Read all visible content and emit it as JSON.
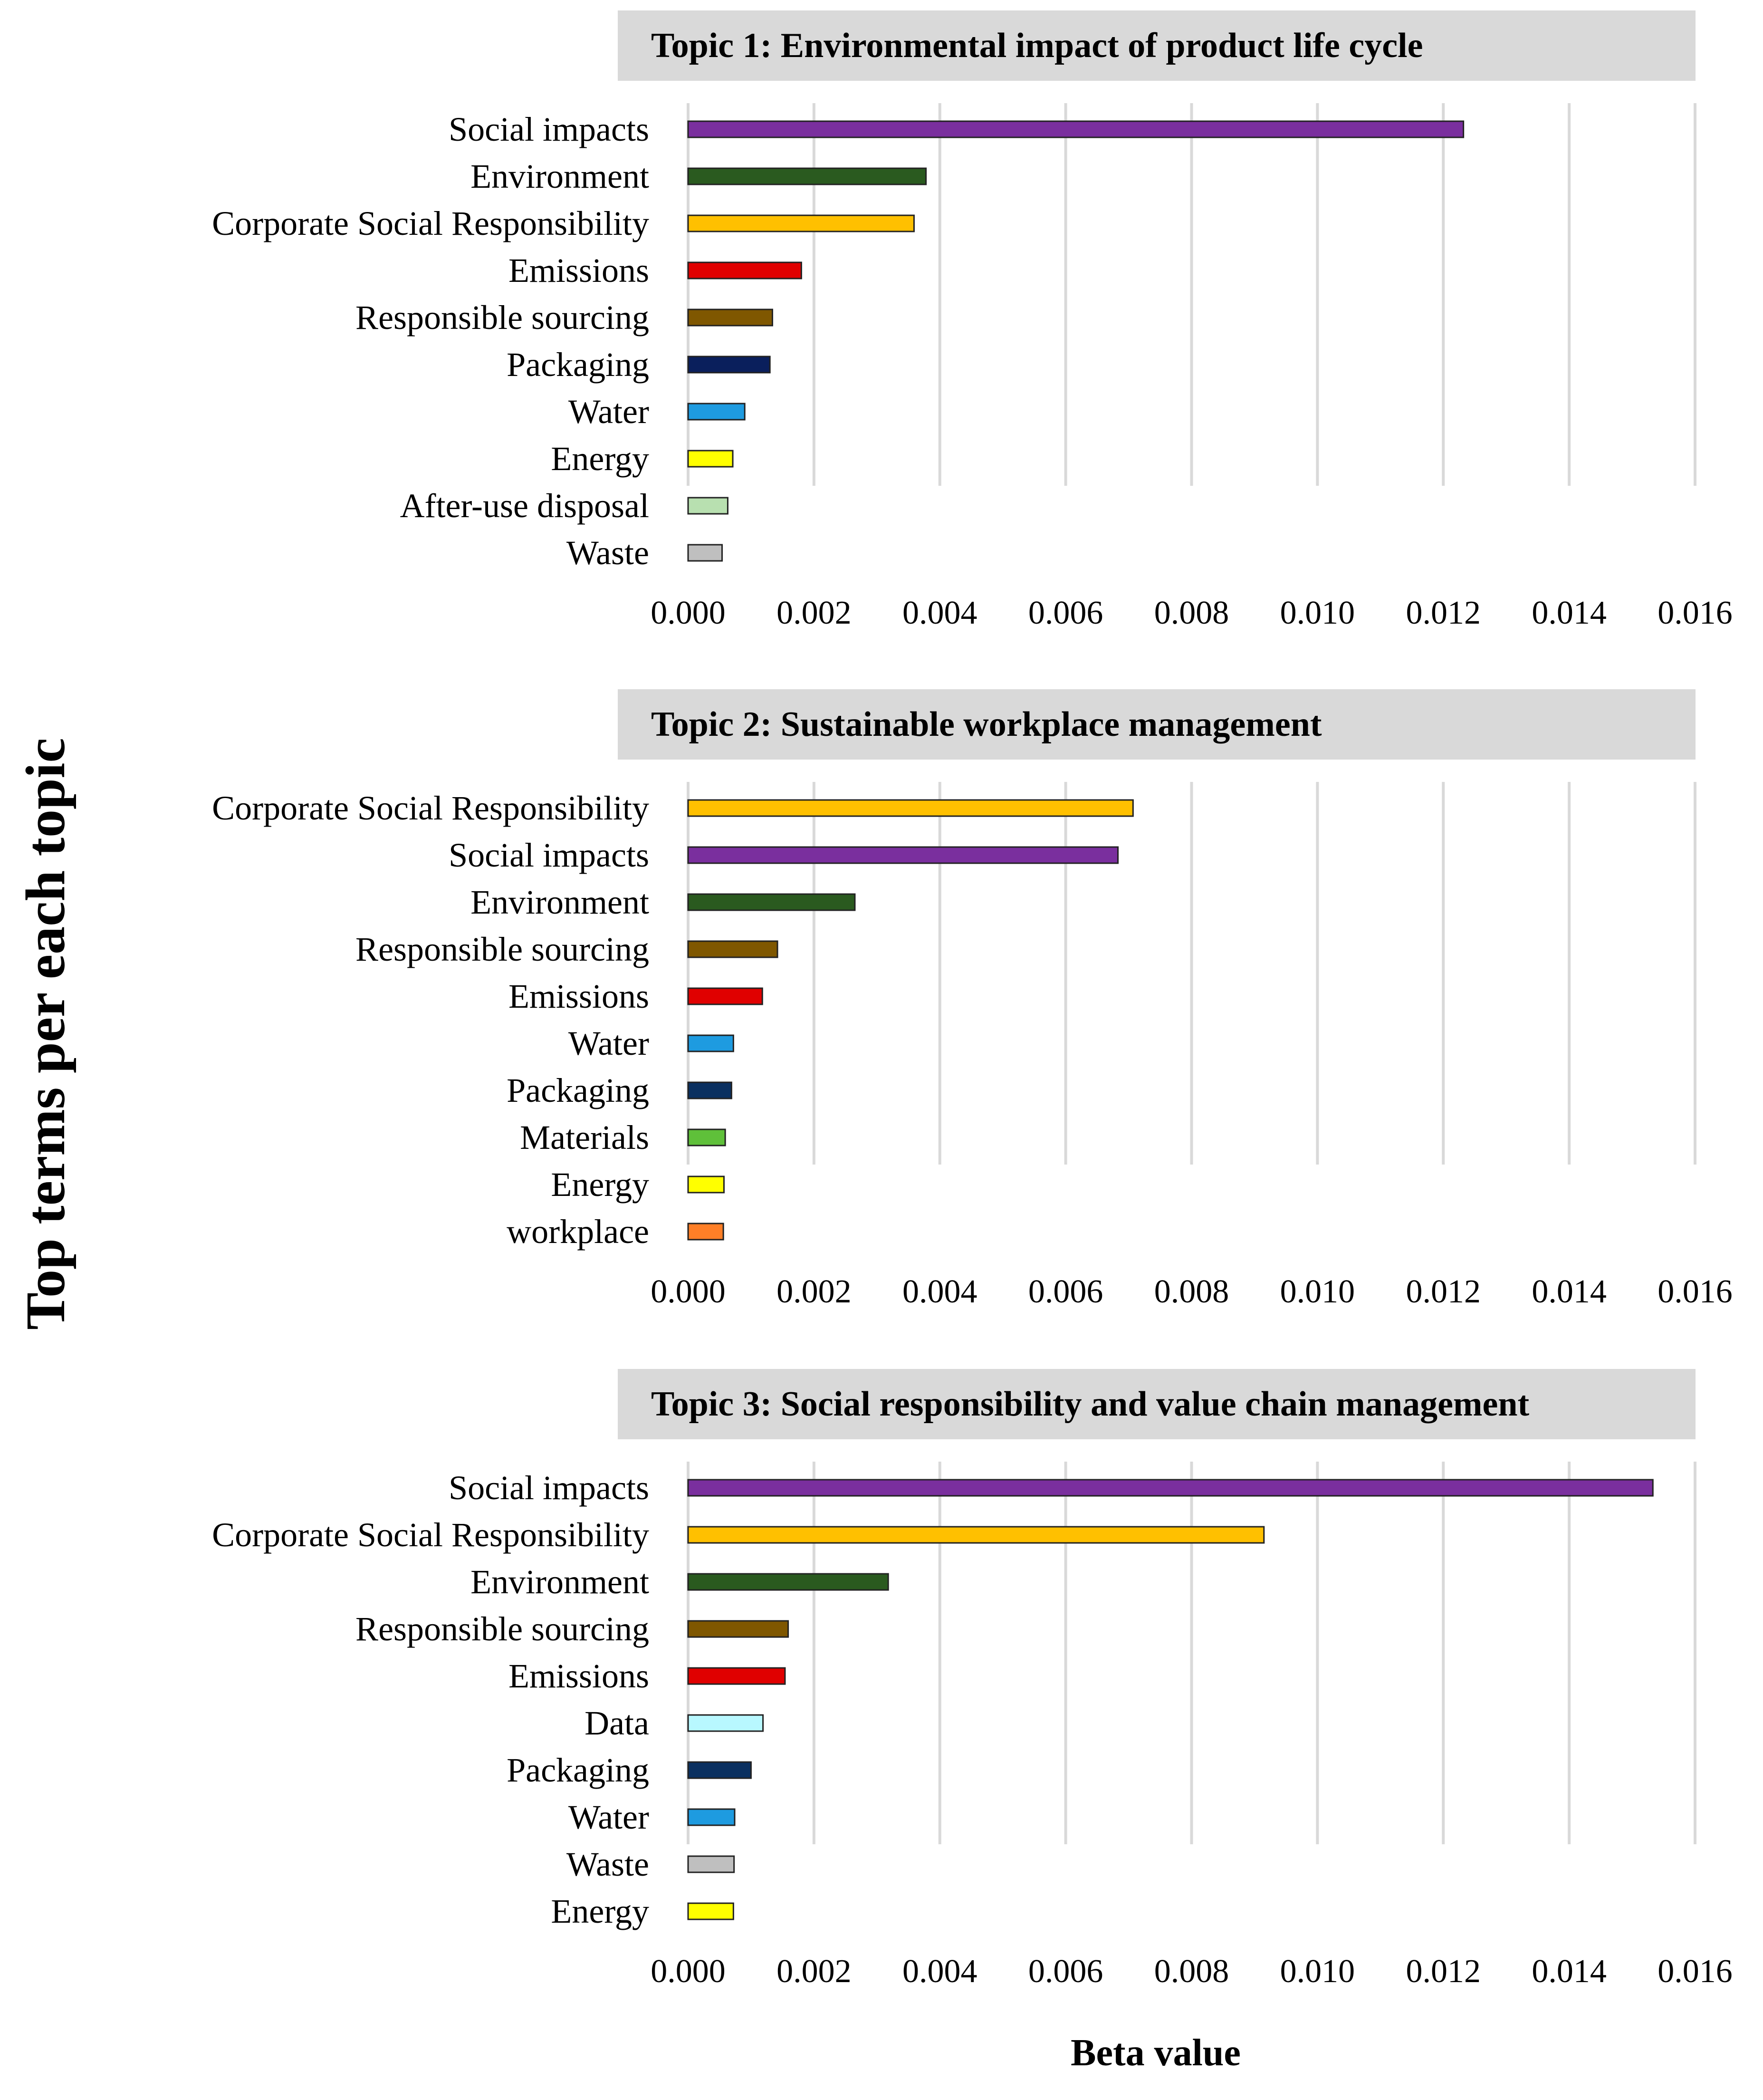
{
  "y_axis_title": "Top terms per each topic",
  "x_axis_title": "Beta value",
  "chart_data": [
    {
      "type": "bar",
      "orientation": "horizontal",
      "title": "Topic 1: Environmental impact of product life cycle",
      "xlabel": "Beta value",
      "ylabel": "Top terms per each topic",
      "xlim": [
        0,
        0.016
      ],
      "xticks": [
        "0.000",
        "0.002",
        "0.004",
        "0.006",
        "0.008",
        "0.010",
        "0.012",
        "0.014",
        "0.016"
      ],
      "grid": true,
      "categories": [
        "Social impacts",
        "Environment",
        "Corporate Social Responsibility",
        "Emissions",
        "Responsible sourcing",
        "Packaging",
        "Water",
        "Energy",
        "After-use disposal",
        "Waste"
      ],
      "values": [
        0.01232,
        0.00378,
        0.00359,
        0.0018,
        0.00134,
        0.0013,
        0.0009,
        0.00071,
        0.00063,
        0.00054
      ],
      "colors": [
        "#7a2f9e",
        "#2a5a1f",
        "#ffc000",
        "#e00000",
        "#7f5700",
        "#0a1f5c",
        "#1e9be0",
        "#ffff00",
        "#b8e0b0",
        "#bfbfbf"
      ]
    },
    {
      "type": "bar",
      "orientation": "horizontal",
      "title": "Topic 2: Sustainable workplace management",
      "xlabel": "Beta value",
      "ylabel": "Top terms per each topic",
      "xlim": [
        0,
        0.016
      ],
      "xticks": [
        "0.000",
        "0.002",
        "0.004",
        "0.006",
        "0.008",
        "0.010",
        "0.012",
        "0.014",
        "0.016"
      ],
      "grid": true,
      "categories": [
        "Corporate Social Responsibility",
        "Social impacts",
        "Environment",
        "Responsible sourcing",
        "Emissions",
        "Water",
        "Packaging",
        "Materials",
        "Energy",
        "workplace"
      ],
      "values": [
        0.00707,
        0.00683,
        0.00265,
        0.00142,
        0.00118,
        0.00072,
        0.00069,
        0.00059,
        0.00057,
        0.00056
      ],
      "colors": [
        "#ffc000",
        "#7a2f9e",
        "#2a5a1f",
        "#7f5700",
        "#e00000",
        "#1e9be0",
        "#0a3060",
        "#5fc03a",
        "#ffff00",
        "#ff7f27"
      ]
    },
    {
      "type": "bar",
      "orientation": "horizontal",
      "title": "Topic 3: Social responsibility and value chain management",
      "xlabel": "Beta value",
      "ylabel": "Top terms per each topic",
      "xlim": [
        0,
        0.016
      ],
      "xticks": [
        "0.000",
        "0.002",
        "0.004",
        "0.006",
        "0.008",
        "0.010",
        "0.012",
        "0.014",
        "0.016"
      ],
      "grid": true,
      "categories": [
        "Social impacts",
        "Corporate Social Responsibility",
        "Environment",
        "Responsible sourcing",
        "Emissions",
        "Data",
        "Packaging",
        "Water",
        "Waste",
        "Energy"
      ],
      "values": [
        0.01533,
        0.00915,
        0.00318,
        0.00159,
        0.00154,
        0.00119,
        0.001,
        0.00074,
        0.00073,
        0.00072
      ],
      "colors": [
        "#7a2f9e",
        "#ffc000",
        "#2a5a1f",
        "#7f5700",
        "#e00000",
        "#b8f8ff",
        "#0a3060",
        "#1e9be0",
        "#bfbfbf",
        "#ffff00"
      ]
    }
  ]
}
